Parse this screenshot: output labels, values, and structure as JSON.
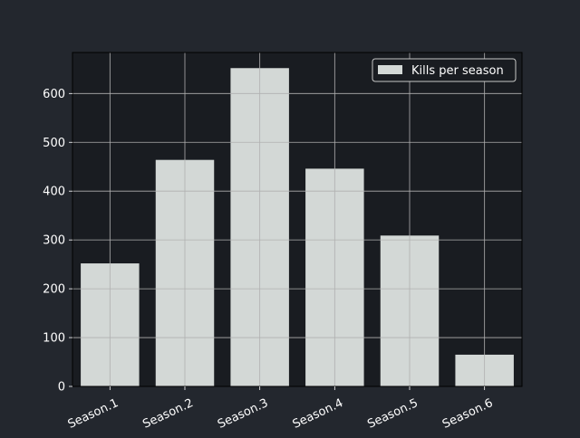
{
  "colors": {
    "background": "#23272e",
    "plot_background": "#191c21",
    "bar_fill": "#d3d8d6",
    "grid": "#b0b0b0",
    "axis": "#000000",
    "text": "#ffffff",
    "legend_border": "#c8c8c8"
  },
  "chart_data": {
    "type": "bar",
    "categories": [
      "Season.1",
      "Season.2",
      "Season.3",
      "Season.4",
      "Season.5",
      "Season.6"
    ],
    "series": [
      {
        "name": "Kills per season",
        "values": [
          252,
          464,
          652,
          446,
          309,
          65
        ]
      }
    ],
    "title": "",
    "xlabel": "",
    "ylabel": "",
    "ylim": [
      0,
      684
    ],
    "yticks": [
      0,
      100,
      200,
      300,
      400,
      500,
      600
    ],
    "grid": true,
    "legend_position": "top-right",
    "xtick_rotation": "rotated"
  }
}
